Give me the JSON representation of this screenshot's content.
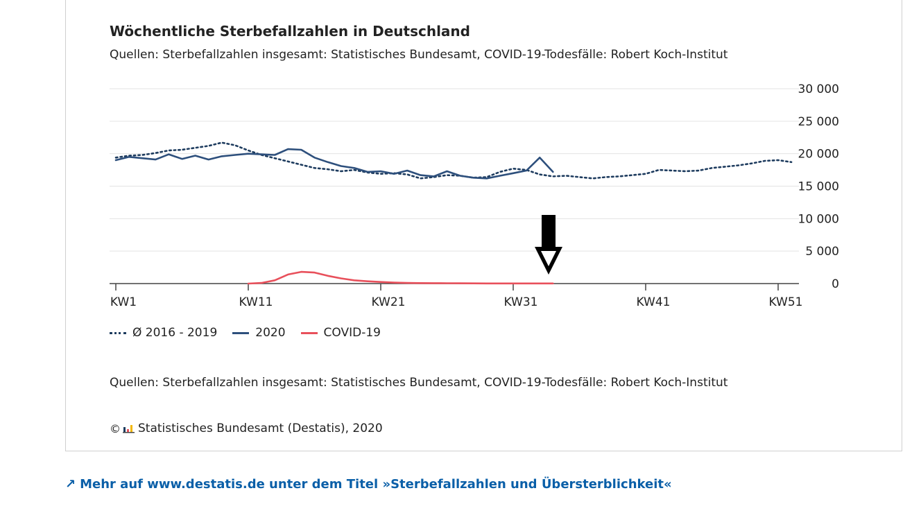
{
  "chart_title": "Wöchentliche Sterbefallzahlen in Deutschland",
  "chart_subtitle": "Quellen: Sterbefallzahlen insgesamt: Statistisches Bundesamt, COVID-19-Todesfälle: Robert Koch-Institut",
  "source_text": "Quellen: Sterbefallzahlen insgesamt: Statistisches Bundesamt, COVID-19-Todesfälle: Robert Koch-Institut",
  "copyright_symbol": "©",
  "copyright_text": "Statistisches Bundesamt (Destatis), 2020",
  "logo_icon": "destatis-logo-icon",
  "more_link": {
    "icon": "arrow-up-right-icon",
    "arrow": "↗",
    "text": "Mehr auf www.destatis.de unter dem Titel »Sterbefallzahlen und Übersterblichkeit«"
  },
  "annotation_icon": "down-arrow-icon",
  "colors": {
    "avg": "#1d3b5e",
    "y2020": "#2d4f7c",
    "covid": "#e8505b",
    "link": "#0a5fa8",
    "grid": "#e3e3e3"
  },
  "chart_data": {
    "type": "line",
    "title": "Wöchentliche Sterbefallzahlen in Deutschland",
    "subtitle": "Quellen: Sterbefallzahlen insgesamt: Statistisches Bundesamt, COVID-19-Todesfälle: Robert Koch-Institut",
    "xlabel": "",
    "ylabel": "",
    "x_range": [
      1,
      52
    ],
    "ylim": [
      0,
      30000
    ],
    "x_ticks": [
      1,
      11,
      21,
      31,
      41,
      51
    ],
    "x_tick_labels": [
      "KW1",
      "KW11",
      "KW21",
      "KW31",
      "KW41",
      "KW51"
    ],
    "y_ticks": [
      0,
      5000,
      10000,
      15000,
      20000,
      25000,
      30000
    ],
    "y_tick_labels": [
      "0",
      "5 000",
      "10 000",
      "15 000",
      "20 000",
      "25 000",
      "30 000"
    ],
    "y_axis_position": "right",
    "grid": true,
    "legend_position": "bottom-left",
    "annotation": "black down arrow pointing to the last COVID-19 value at KW34",
    "series": [
      {
        "name": "Ø 2016 - 2019",
        "style": "dotted",
        "x": [
          1,
          2,
          3,
          4,
          5,
          6,
          7,
          8,
          9,
          10,
          11,
          12,
          13,
          14,
          15,
          16,
          17,
          18,
          19,
          20,
          21,
          22,
          23,
          24,
          25,
          26,
          27,
          28,
          29,
          30,
          31,
          32,
          33,
          34,
          35,
          36,
          37,
          38,
          39,
          40,
          41,
          42,
          43,
          44,
          45,
          46,
          47,
          48,
          49,
          50,
          51,
          52
        ],
        "values": [
          19400,
          19700,
          19800,
          20100,
          20500,
          20600,
          20900,
          21200,
          21700,
          21300,
          20500,
          19800,
          19300,
          18800,
          18300,
          17800,
          17600,
          17300,
          17500,
          17100,
          16900,
          17000,
          16800,
          16200,
          16400,
          16700,
          16600,
          16300,
          16400,
          17200,
          17700,
          17500,
          16800,
          16500,
          16600,
          16400,
          16200,
          16400,
          16500,
          16700,
          16900,
          17500,
          17400,
          17300,
          17400,
          17800,
          18000,
          18200,
          18500,
          18900,
          19000,
          18700
        ]
      },
      {
        "name": "2020",
        "style": "solid",
        "x": [
          1,
          2,
          3,
          4,
          5,
          6,
          7,
          8,
          9,
          10,
          11,
          12,
          13,
          14,
          15,
          16,
          17,
          18,
          19,
          20,
          21,
          22,
          23,
          24,
          25,
          26,
          27,
          28,
          29,
          30,
          31,
          32,
          33,
          34
        ],
        "values": [
          19000,
          19500,
          19300,
          19100,
          19900,
          19200,
          19700,
          19100,
          19600,
          19800,
          20000,
          19900,
          19800,
          20700,
          20600,
          19400,
          18700,
          18100,
          17800,
          17200,
          17300,
          16900,
          17400,
          16700,
          16500,
          17300,
          16600,
          16300,
          16200,
          16600,
          17000,
          17400,
          19400,
          17200
        ]
      },
      {
        "name": "COVID-19",
        "style": "solid",
        "x": [
          11,
          12,
          13,
          14,
          15,
          16,
          17,
          18,
          19,
          20,
          21,
          22,
          23,
          24,
          25,
          26,
          27,
          28,
          29,
          30,
          31,
          32,
          33,
          34
        ],
        "values": [
          0,
          100,
          500,
          1400,
          1800,
          1700,
          1200,
          800,
          500,
          350,
          250,
          150,
          100,
          80,
          60,
          50,
          40,
          30,
          25,
          20,
          20,
          20,
          20,
          20
        ]
      }
    ]
  }
}
